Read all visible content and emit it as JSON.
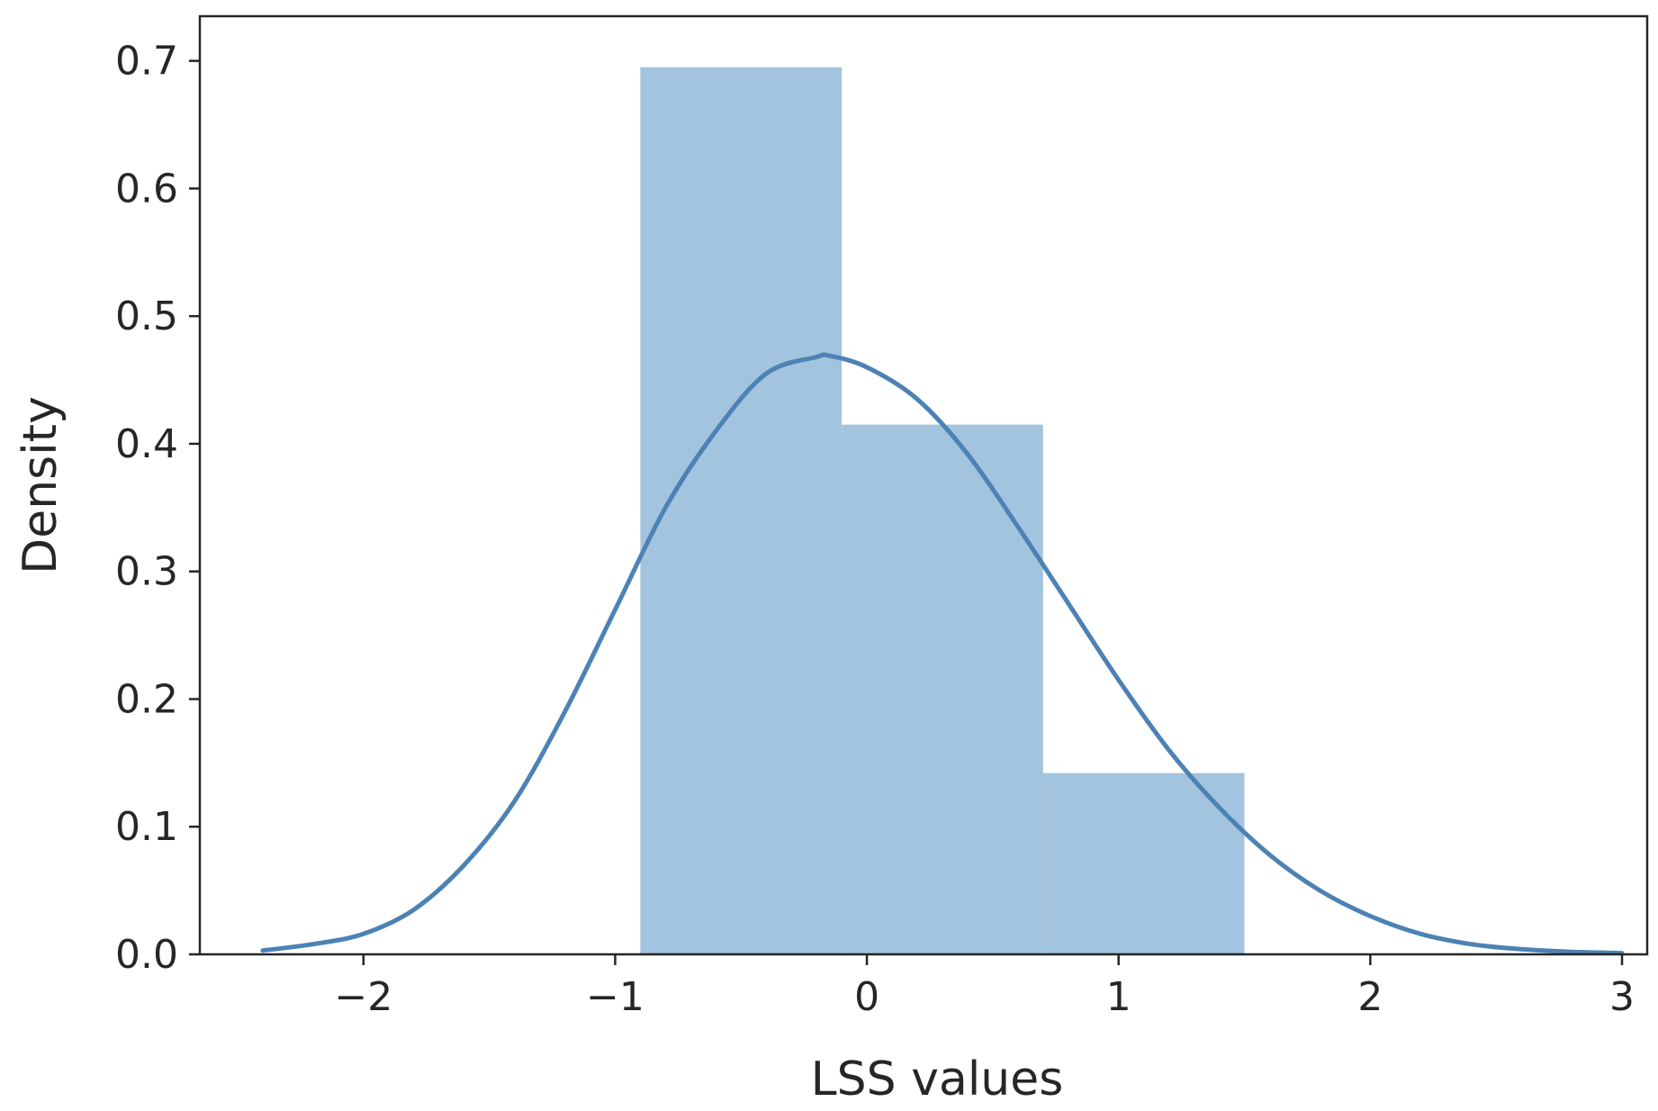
{
  "chart_data": {
    "type": "bar",
    "title": "",
    "xlabel": "LSS values",
    "ylabel": "Density",
    "xlim": [
      -2.65,
      3.1
    ],
    "ylim": [
      0,
      0.735
    ],
    "grid": false,
    "xticks": [
      -2,
      -1,
      0,
      1,
      2,
      3
    ],
    "xtick_labels": [
      "−2",
      "−1",
      "0",
      "1",
      "2",
      "3"
    ],
    "yticks": [
      0.0,
      0.1,
      0.2,
      0.3,
      0.4,
      0.5,
      0.6,
      0.7
    ],
    "ytick_labels": [
      "0.0",
      "0.1",
      "0.2",
      "0.3",
      "0.4",
      "0.5",
      "0.6",
      "0.7"
    ],
    "histogram": {
      "bin_edges": [
        -0.9,
        -0.1,
        0.7,
        1.5
      ],
      "density": [
        0.695,
        0.415,
        0.142
      ],
      "color": "#a3c4de"
    },
    "kde": {
      "color": "#4c82b4",
      "x": [
        -2.4,
        -2.2,
        -2.0,
        -1.8,
        -1.6,
        -1.4,
        -1.2,
        -1.0,
        -0.8,
        -0.6,
        -0.4,
        -0.2,
        -0.15,
        0.0,
        0.2,
        0.4,
        0.6,
        0.8,
        1.0,
        1.2,
        1.4,
        1.6,
        1.8,
        2.0,
        2.2,
        2.4,
        2.6,
        2.8,
        3.0
      ],
      "y": [
        0.003,
        0.008,
        0.016,
        0.035,
        0.07,
        0.12,
        0.19,
        0.27,
        0.35,
        0.41,
        0.455,
        0.468,
        0.469,
        0.46,
        0.435,
        0.392,
        0.335,
        0.275,
        0.215,
        0.16,
        0.115,
        0.078,
        0.05,
        0.03,
        0.016,
        0.008,
        0.004,
        0.002,
        0.001
      ]
    }
  }
}
